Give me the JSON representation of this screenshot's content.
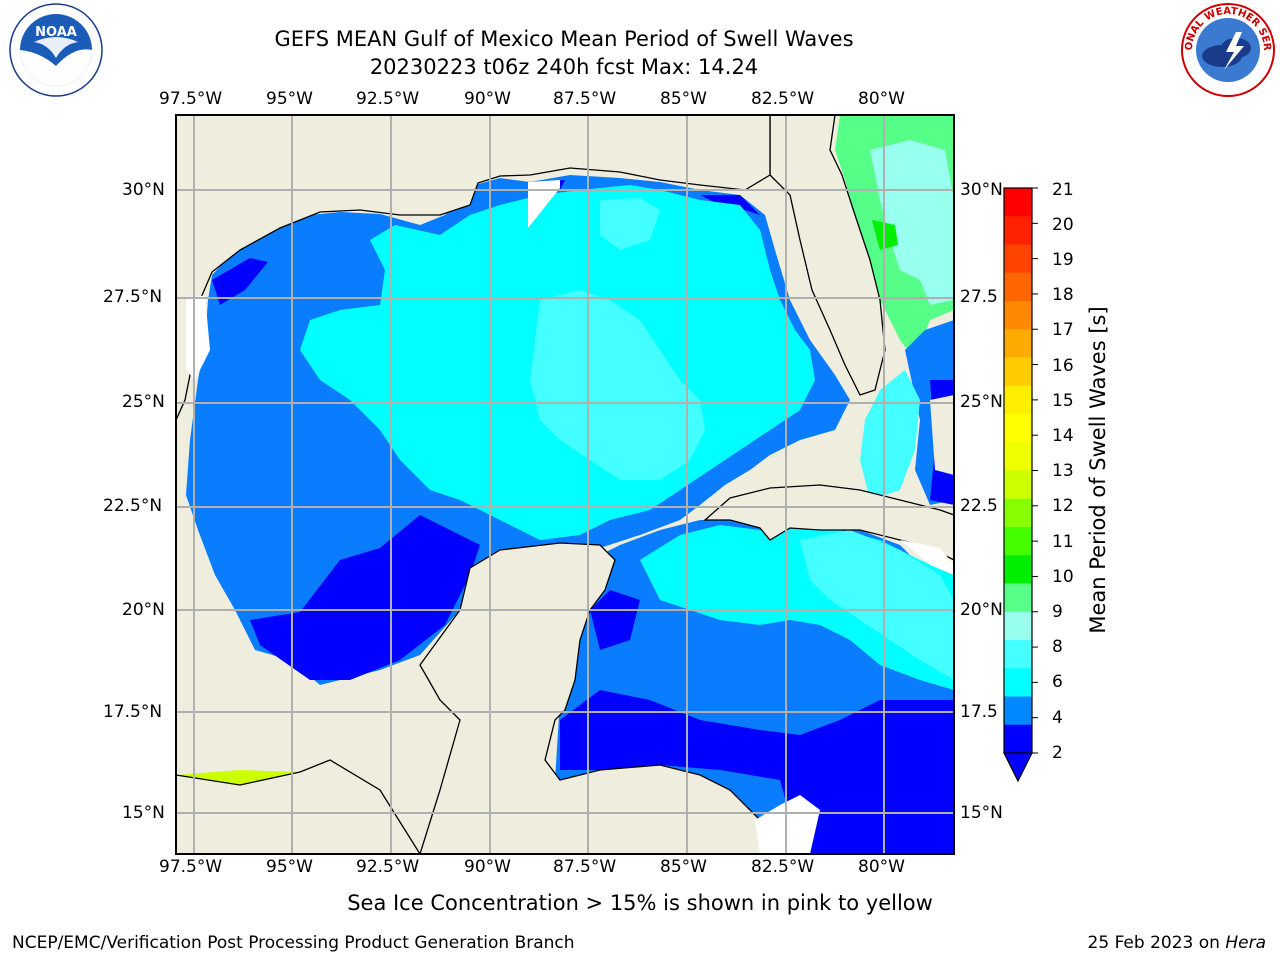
{
  "title": {
    "line1": "GEFS MEAN Gulf of Mexico Mean Period of Swell Waves",
    "line2": "20230223 t06z 240h fcst   Max: 14.24"
  },
  "logos": {
    "left": "NOAA",
    "right": "NATIONAL WEATHER SERVICE"
  },
  "map": {
    "lon_labels": [
      "97.5°W",
      "95°W",
      "92.5°W",
      "90°W",
      "87.5°W",
      "85°W",
      "82.5°W",
      "80°W"
    ],
    "lat_labels_left": [
      "30°N",
      "27.5°N",
      "25°N",
      "22.5°N",
      "20°N",
      "17.5°N",
      "15°N"
    ],
    "lat_labels_right": [
      "30°N",
      "27.5",
      "25°N",
      "22.5",
      "20°N",
      "17.5",
      "15°N"
    ],
    "colors": {
      "land": "#efedde",
      "grid": "#b0b0b0"
    }
  },
  "colorbar": {
    "label": "Mean Period of Swell Waves [s]",
    "ticks": [
      "21",
      "20",
      "19",
      "18",
      "17",
      "16",
      "15",
      "14",
      "13",
      "12",
      "11",
      "10",
      "9",
      "8",
      "6",
      "4",
      "2"
    ],
    "colors": [
      "#ff0000",
      "#ff2200",
      "#ff4400",
      "#ff6600",
      "#ff8800",
      "#ffaa00",
      "#ffcc00",
      "#ffee00",
      "#ffff00",
      "#eeff00",
      "#ccff00",
      "#88ff00",
      "#44ff00",
      "#00ee00",
      "#55ff88",
      "#99ffee",
      "#44ffff",
      "#00ffff",
      "#0088ff",
      "#0000ff"
    ]
  },
  "note": "Sea Ice Concentration > 15% is shown in pink to yellow",
  "footer": {
    "left": "NCEP/EMC/Verification Post Processing Product Generation Branch",
    "date": "25 Feb 2023 on ",
    "machine": "Hera"
  }
}
